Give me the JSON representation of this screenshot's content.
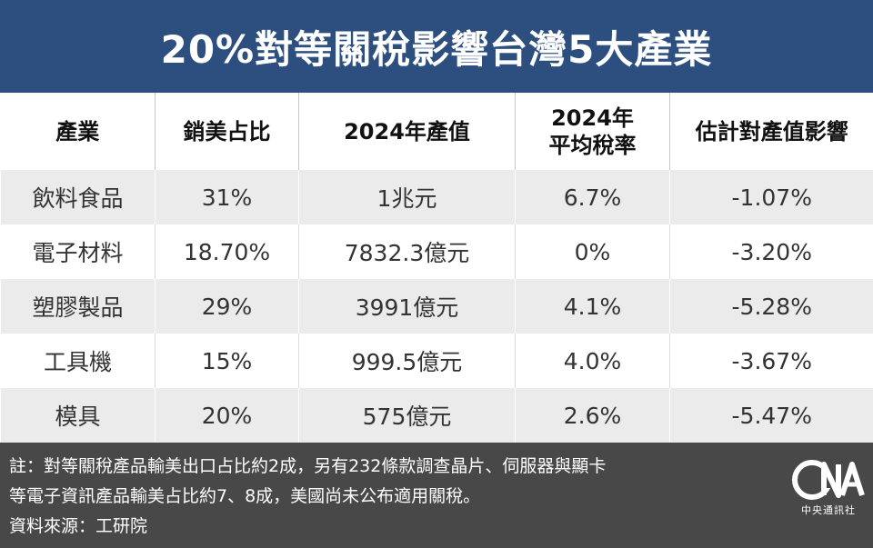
{
  "title": "20%對等關稅影響台灣5大產業",
  "chart_data": {
    "type": "table",
    "title": "20%對等關稅影響台灣5大產業",
    "columns": [
      "產業",
      "銷美占比",
      "2024年產值",
      "2024年平均稅率",
      "估計對產值影響"
    ],
    "header_lines": [
      [
        "產業"
      ],
      [
        "銷美占比"
      ],
      [
        "2024年產值"
      ],
      [
        "2024年",
        "平均稅率"
      ],
      [
        "估計對產值影響"
      ]
    ],
    "rows": [
      [
        "飲料食品",
        "31%",
        "1兆元",
        "6.7%",
        "-1.07%"
      ],
      [
        "電子材料",
        "18.70%",
        "7832.3億元",
        "0%",
        "-3.20%"
      ],
      [
        "塑膠製品",
        "29%",
        "3991億元",
        "4.1%",
        "-5.28%"
      ],
      [
        "工具機",
        "15%",
        "999.5億元",
        "4.0%",
        "-3.67%"
      ],
      [
        "模具",
        "20%",
        "575億元",
        "2.6%",
        "-5.47%"
      ]
    ]
  },
  "footer": {
    "notes": [
      "註：對等關稅產品輸美出口占比約2成，另有232條款調查晶片、伺服器與顯卡",
      "等電子資訊產品輸美占比約7、8成，美國尚未公布適用關稅。",
      "資料來源：工研院"
    ],
    "logo_mark": "CNA",
    "logo_text": "中央通訊社"
  },
  "colors": {
    "title_bg": "#2c4f80",
    "row_stripe": "#ebebeb",
    "footer_bg": "#484848"
  }
}
